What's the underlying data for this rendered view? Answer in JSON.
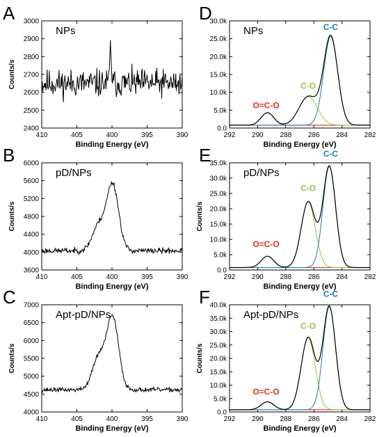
{
  "chart_data": [
    {
      "panel": "A",
      "title": "NPs",
      "type": "line",
      "xlabel": "Binding Energy (eV)",
      "ylabel": "Counts/s",
      "xlim": [
        410,
        390
      ],
      "ylim": [
        2400,
        3000
      ],
      "xticks": [
        410,
        405,
        400,
        395,
        390
      ],
      "yticks": [
        2400,
        2500,
        2600,
        2700,
        2800,
        2900,
        3000
      ],
      "ytick_labels": [
        "2400",
        "2500",
        "2600",
        "2700",
        "2800",
        "2900",
        "3000"
      ],
      "series": [
        {
          "color": "#000000",
          "baseline": 2650,
          "noise": 55,
          "peaks": [
            [
              400.2,
              200,
              0.12
            ]
          ],
          "seed": 11
        }
      ],
      "annotations": []
    },
    {
      "panel": "B",
      "title": "pD/NPs",
      "type": "line",
      "xlabel": "Binding Energy (eV)",
      "ylabel": "Counts/s",
      "xlim": [
        410,
        390
      ],
      "ylim": [
        3600,
        6000
      ],
      "xticks": [
        410,
        405,
        400,
        395,
        390
      ],
      "yticks": [
        3600,
        4000,
        4400,
        4800,
        5200,
        5600,
        6000
      ],
      "ytick_labels": [
        "3600",
        "4000",
        "4400",
        "4800",
        "5200",
        "5600",
        "6000"
      ],
      "series": [
        {
          "color": "#000000",
          "baseline": 4030,
          "noise": 45,
          "peaks": [
            [
              399.9,
              1480,
              0.85
            ],
            [
              401.9,
              560,
              0.9
            ]
          ],
          "seed": 23
        }
      ],
      "annotations": []
    },
    {
      "panel": "C",
      "title": "Apt-pD/NPs",
      "type": "line",
      "xlabel": "Binding Energy (eV)",
      "ylabel": "Counts/s",
      "xlim": [
        410,
        390
      ],
      "ylim": [
        4000,
        7000
      ],
      "xticks": [
        410,
        405,
        400,
        395,
        390
      ],
      "yticks": [
        4000,
        4500,
        5000,
        5500,
        6000,
        6500,
        7000
      ],
      "ytick_labels": [
        "4000",
        "4500",
        "5000",
        "5500",
        "6000",
        "6500",
        "7000"
      ],
      "series": [
        {
          "color": "#000000",
          "baseline": 4620,
          "noise": 45,
          "peaks": [
            [
              399.9,
              2000,
              0.85
            ],
            [
              401.9,
              900,
              0.9
            ]
          ],
          "seed": 37
        }
      ],
      "annotations": []
    },
    {
      "panel": "D",
      "title": "NPs",
      "type": "line",
      "xlabel": "Binding Energy (eV)",
      "ylabel": "",
      "xlim": [
        292,
        282
      ],
      "ylim": [
        0,
        30000
      ],
      "xticks": [
        292,
        290,
        288,
        286,
        284,
        282
      ],
      "yticks": [
        0,
        5000,
        10000,
        15000,
        20000,
        25000,
        30000
      ],
      "ytick_labels": [
        "0.0",
        "5.0k",
        "10.0k",
        "15.0k",
        "20.0k",
        "25.0k",
        "30.0k"
      ],
      "components": [
        {
          "label": "O=C-O",
          "color": "#e0301e",
          "center": 289.3,
          "height": 3500,
          "sigma": 0.45
        },
        {
          "label": "C-O",
          "color": "#8cc63f",
          "center": 286.4,
          "height": 8000,
          "sigma": 0.65
        },
        {
          "label": "C-C",
          "color": "#1f77b4",
          "center": 284.8,
          "height": 24800,
          "sigma": 0.5
        }
      ],
      "envelope_color": "#000000",
      "baseline": 800,
      "baseline_color": "#e07f7f",
      "annotations": [
        {
          "text": "O=C-O",
          "x": 289.4,
          "y": 5600,
          "color": "#e0301e"
        },
        {
          "text": "C-O",
          "x": 286.4,
          "y": 11000,
          "color": "#8cc63f"
        },
        {
          "text": "C-C",
          "x": 284.8,
          "y": 27500,
          "color": "#1f77b4"
        }
      ]
    },
    {
      "panel": "E",
      "title": "pD/NPs",
      "type": "line",
      "xlabel": "Binding Energy (eV)",
      "ylabel": "Counts/s",
      "xlim": [
        292,
        282
      ],
      "ylim": [
        0,
        35000
      ],
      "xticks": [
        292,
        290,
        288,
        286,
        284,
        282
      ],
      "yticks": [
        0,
        5000,
        10000,
        15000,
        20000,
        25000,
        30000,
        35000
      ],
      "ytick_labels": [
        "0.0",
        "5.0k",
        "10.0k",
        "15.0k",
        "20.0k",
        "25.0k",
        "30.0k",
        "35.0k"
      ],
      "components": [
        {
          "label": "O=C-O",
          "color": "#e0301e",
          "center": 289.3,
          "height": 3700,
          "sigma": 0.45
        },
        {
          "label": "C-O",
          "color": "#8cc63f",
          "center": 286.4,
          "height": 21500,
          "sigma": 0.5
        },
        {
          "label": "C-C",
          "color": "#1f77b4",
          "center": 284.9,
          "height": 33000,
          "sigma": 0.45
        }
      ],
      "envelope_color": "#000000",
      "baseline": 800,
      "baseline_color": "#e07f7f",
      "annotations": [
        {
          "text": "O=C-O",
          "x": 289.4,
          "y": 7500,
          "color": "#e0301e"
        },
        {
          "text": "C-O",
          "x": 286.4,
          "y": 25800,
          "color": "#8cc63f"
        },
        {
          "text": "C-C",
          "x": 284.8,
          "y": 37000,
          "color": "#1f77b4"
        }
      ]
    },
    {
      "panel": "F",
      "title": "Apt-pD/NPs",
      "type": "line",
      "xlabel": "Binding Energy (eV)",
      "ylabel": "Counts/s",
      "xlim": [
        292,
        282
      ],
      "ylim": [
        0,
        40000
      ],
      "xticks": [
        292,
        290,
        288,
        286,
        284,
        282
      ],
      "yticks": [
        0,
        5000,
        10000,
        15000,
        20000,
        25000,
        30000,
        35000,
        40000
      ],
      "ytick_labels": [
        "0.0",
        "5.0k",
        "10.0k",
        "15.0k",
        "20.0k",
        "25.0k",
        "30.0k",
        "35.0k",
        "40.0k"
      ],
      "components": [
        {
          "label": "O=C-O",
          "color": "#e0301e",
          "center": 289.3,
          "height": 3000,
          "sigma": 0.45
        },
        {
          "label": "C-O",
          "color": "#8cc63f",
          "center": 286.4,
          "height": 27000,
          "sigma": 0.5
        },
        {
          "label": "C-C",
          "color": "#1f77b4",
          "center": 284.9,
          "height": 38500,
          "sigma": 0.45
        }
      ],
      "envelope_color": "#000000",
      "baseline": 800,
      "baseline_color": "#e07f7f",
      "annotations": [
        {
          "text": "O=C-O",
          "x": 289.4,
          "y": 6500,
          "color": "#e0301e"
        },
        {
          "text": "C-O",
          "x": 286.4,
          "y": 31000,
          "color": "#8cc63f"
        },
        {
          "text": "C-C",
          "x": 284.8,
          "y": 43000,
          "color": "#1f77b4"
        }
      ]
    }
  ]
}
